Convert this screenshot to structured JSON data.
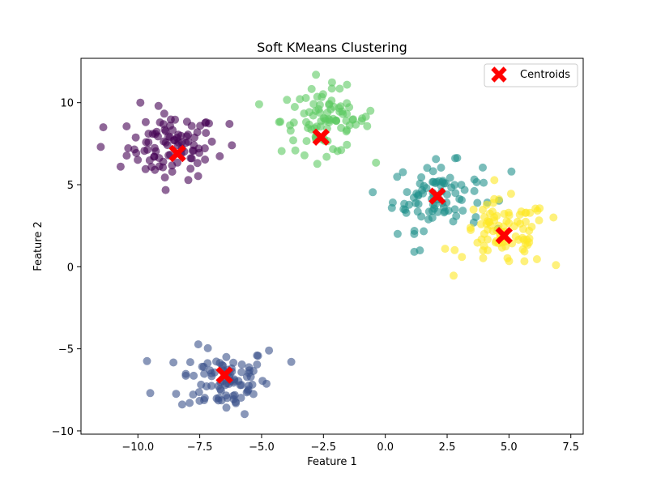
{
  "chart_data": {
    "type": "scatter",
    "title": "Soft KMeans Clustering",
    "xlabel": "Feature 1",
    "ylabel": "Feature 2",
    "xlim": [
      -12.3,
      8.0
    ],
    "ylim": [
      -10.2,
      12.7
    ],
    "xticks": [
      -10.0,
      -7.5,
      -5.0,
      -2.5,
      0.0,
      2.5,
      5.0,
      7.5
    ],
    "xtick_labels": [
      "−10.0",
      "−7.5",
      "−5.0",
      "−2.5",
      "0.0",
      "2.5",
      "5.0",
      "7.5"
    ],
    "yticks": [
      -10,
      -5,
      0,
      5,
      10
    ],
    "ytick_labels": [
      "−10",
      "−5",
      "0",
      "5",
      "10"
    ],
    "grid": false,
    "legend": {
      "placement": "top-right",
      "entries": [
        "Centroids"
      ]
    },
    "clusters": [
      {
        "color": "#440154",
        "center": [
          -8.6,
          7.3
        ],
        "spread": [
          0.9,
          1.0
        ],
        "count": 90
      },
      {
        "color": "#3b528b",
        "center": [
          -6.5,
          -6.9
        ],
        "spread": [
          0.9,
          1.0
        ],
        "count": 90
      },
      {
        "color": "#21918c",
        "center": [
          2.1,
          4.3
        ],
        "spread": [
          0.9,
          1.0
        ],
        "count": 90
      },
      {
        "color": "#5ec962",
        "center": [
          -2.4,
          8.9
        ],
        "spread": [
          0.9,
          1.0
        ],
        "count": 90
      },
      {
        "color": "#fde725",
        "center": [
          4.8,
          2.0
        ],
        "spread": [
          0.9,
          1.0
        ],
        "count": 90
      }
    ],
    "extra_points": [
      {
        "color": "#440154",
        "x": -11.5,
        "y": 7.3
      },
      {
        "color": "#440154",
        "x": -11.4,
        "y": 8.5
      },
      {
        "color": "#440154",
        "x": -10.7,
        "y": 6.1
      },
      {
        "color": "#440154",
        "x": -9.9,
        "y": 10.0
      },
      {
        "color": "#440154",
        "x": -6.3,
        "y": 8.7
      },
      {
        "color": "#440154",
        "x": -6.2,
        "y": 7.4
      },
      {
        "color": "#3b528b",
        "x": -3.8,
        "y": -5.8
      },
      {
        "color": "#3b528b",
        "x": -9.5,
        "y": -7.7
      },
      {
        "color": "#3b528b",
        "x": -4.7,
        "y": -5.1
      },
      {
        "color": "#21918c",
        "x": 1.4,
        "y": 1.0
      },
      {
        "color": "#21918c",
        "x": 5.1,
        "y": 5.8
      },
      {
        "color": "#21918c",
        "x": 0.5,
        "y": 2.0
      },
      {
        "color": "#5ec962",
        "x": -5.1,
        "y": 9.9
      },
      {
        "color": "#5ec962",
        "x": -0.6,
        "y": 9.5
      },
      {
        "color": "#5ec962",
        "x": -2.8,
        "y": 11.7
      },
      {
        "color": "#fde725",
        "x": 6.9,
        "y": 0.1
      },
      {
        "color": "#fde725",
        "x": 6.8,
        "y": 3.0
      },
      {
        "color": "#fde725",
        "x": 3.1,
        "y": 0.6
      }
    ],
    "centroids": {
      "color": "#ff0000",
      "marker": "X",
      "points": [
        {
          "x": -8.4,
          "y": 6.9
        },
        {
          "x": -6.5,
          "y": -6.6
        },
        {
          "x": 2.1,
          "y": 4.3
        },
        {
          "x": -2.6,
          "y": 7.9
        },
        {
          "x": 4.8,
          "y": 1.9
        }
      ]
    }
  }
}
